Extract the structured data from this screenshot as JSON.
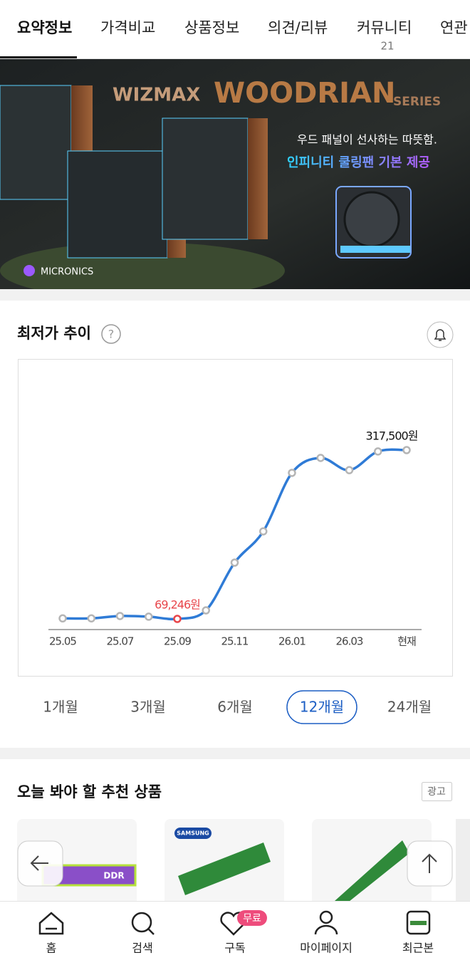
{
  "tabs": [
    {
      "label": "요약정보",
      "active": true
    },
    {
      "label": "가격비교"
    },
    {
      "label": "상품정보"
    },
    {
      "label": "의견/리뷰"
    },
    {
      "label": "커뮤니티",
      "count": 21
    },
    {
      "label": "연관"
    }
  ],
  "banner": {
    "brand": "WIZMAX",
    "series_name": "WOODRIAN",
    "series_suffix": "SERIES",
    "tagline": "우드 패널이 선사하는 따뜻함.",
    "feature": "인피니티 쿨링팬 기본 제공",
    "maker": "MICRONICS"
  },
  "chart_data": {
    "type": "line",
    "title": "최저가 추이",
    "help_icon": "?",
    "categories": [
      "25.05",
      null,
      "25.07",
      null,
      "25.09",
      null,
      "25.11",
      null,
      "26.01",
      null,
      "26.03",
      null,
      "현재"
    ],
    "values": [
      70000,
      70000,
      73500,
      72500,
      69246,
      81800,
      152000,
      198000,
      284000,
      306000,
      288000,
      315500,
      317500
    ],
    "value_labels": [
      null,
      null,
      null,
      null,
      "69,246원",
      null,
      null,
      null,
      null,
      null,
      null,
      null,
      "317,500원"
    ],
    "color": "#2f7bd6",
    "min_color": "#e8464b"
  },
  "range_options": [
    {
      "label": "1개월"
    },
    {
      "label": "3개월"
    },
    {
      "label": "6개월"
    },
    {
      "label": "12개월",
      "selected": true
    },
    {
      "label": "24개월"
    }
  ],
  "recommend": {
    "title": "오늘 봐야 할 추천 상품",
    "ad_badge": "광고",
    "image_texts": [
      "DDR",
      "SAMSUNG"
    ]
  },
  "bottom_nav": [
    {
      "label": "홈"
    },
    {
      "label": "검색"
    },
    {
      "label": "구독",
      "badge": "무료"
    },
    {
      "label": "마이페이지"
    },
    {
      "label": "최근본"
    }
  ]
}
